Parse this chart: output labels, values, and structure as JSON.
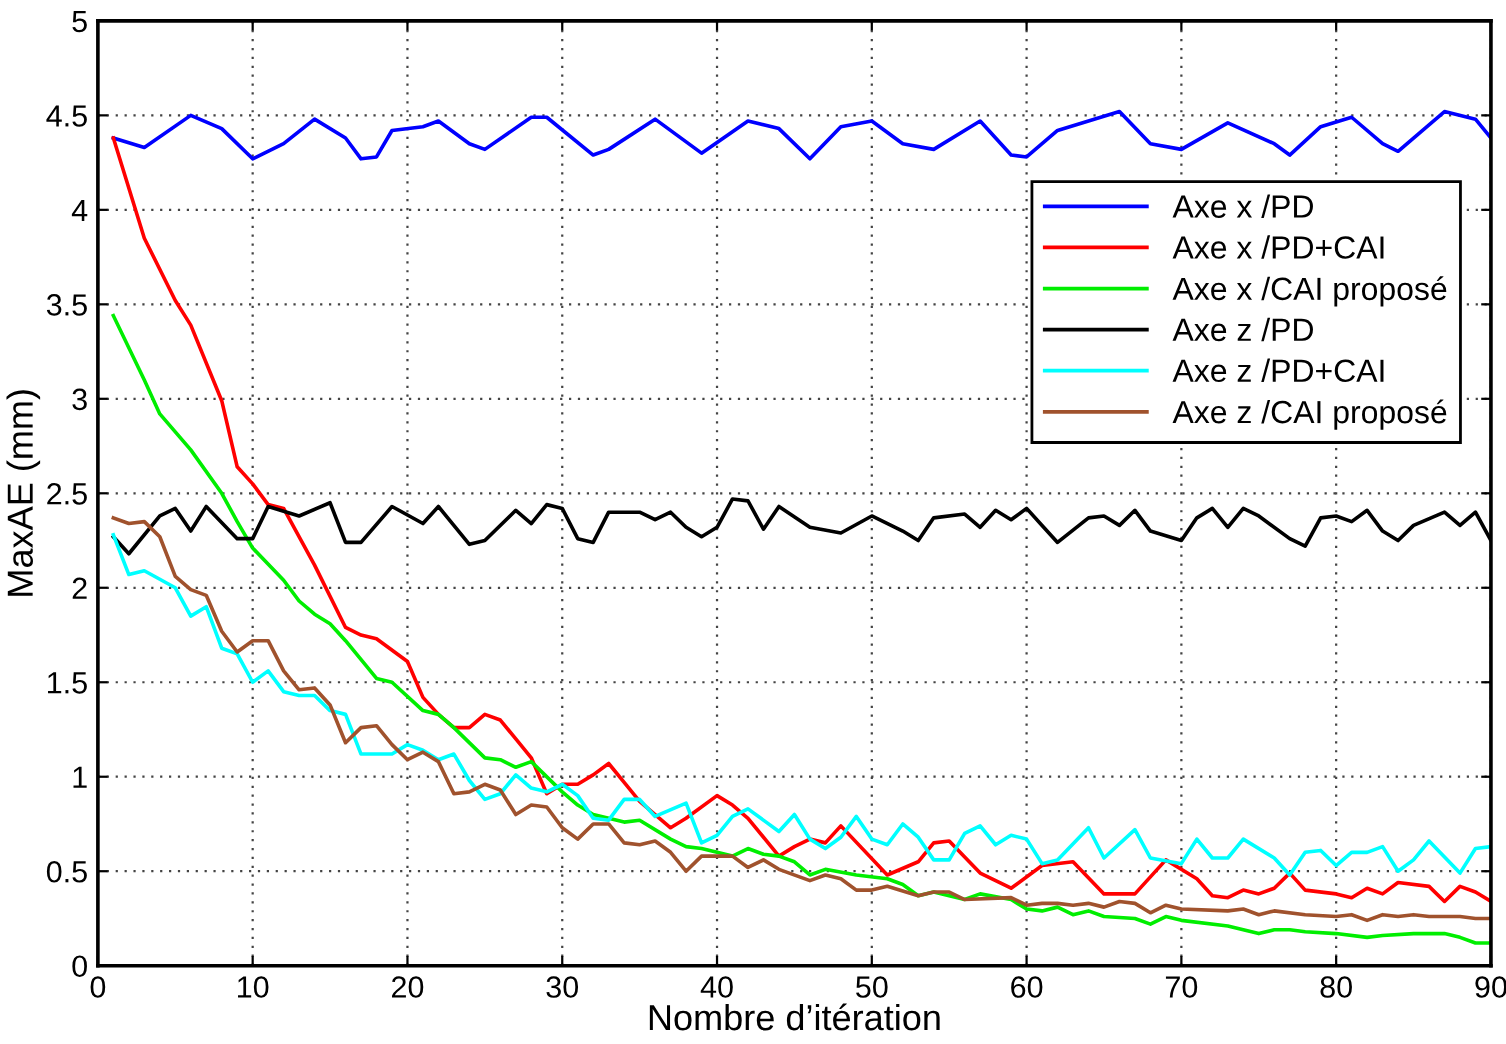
{
  "chart_data": {
    "type": "line",
    "xlabel": "Nombre d’itération",
    "ylabel": "MaxAE (mm)",
    "xlim": [
      0,
      90
    ],
    "ylim": [
      0,
      5
    ],
    "xticks": [
      0,
      10,
      20,
      30,
      40,
      50,
      60,
      70,
      80,
      90
    ],
    "yticks": [
      0,
      0.5,
      1,
      1.5,
      2,
      2.5,
      3,
      3.5,
      4,
      4.5,
      5
    ],
    "grid": true,
    "legend": "right",
    "marker": "none",
    "line_style": "solid",
    "series": [
      {
        "name": "Axe x /PD",
        "color": "#0000ff",
        "x": [
          1,
          3,
          6,
          8,
          10,
          12,
          14,
          16,
          17,
          18,
          19,
          21,
          22,
          24,
          25,
          28,
          29,
          32,
          33,
          36,
          39,
          42,
          44,
          46,
          48,
          50,
          52,
          54,
          57,
          59,
          60,
          62,
          66,
          68,
          70,
          73,
          76,
          77,
          79,
          81,
          83,
          84,
          87,
          89,
          90
        ],
        "values": [
          4.38,
          4.33,
          4.5,
          4.43,
          4.27,
          4.35,
          4.48,
          4.38,
          4.27,
          4.28,
          4.42,
          4.44,
          4.47,
          4.35,
          4.32,
          4.49,
          4.49,
          4.29,
          4.32,
          4.48,
          4.3,
          4.47,
          4.43,
          4.27,
          4.44,
          4.47,
          4.35,
          4.32,
          4.47,
          4.29,
          4.28,
          4.42,
          4.52,
          4.35,
          4.32,
          4.46,
          4.35,
          4.29,
          4.44,
          4.49,
          4.35,
          4.31,
          4.52,
          4.48,
          4.38
        ]
      },
      {
        "name": "Axe x /PD+CAI",
        "color": "#ff0000",
        "x": [
          1,
          3,
          5,
          6,
          8,
          9,
          10,
          11,
          12,
          14,
          16,
          17,
          18,
          20,
          21,
          22,
          23,
          24,
          25,
          26,
          27,
          28,
          29,
          30,
          31,
          32,
          33,
          34,
          35,
          36,
          37,
          38,
          40,
          41,
          42,
          44,
          45,
          46,
          47,
          48,
          51,
          53,
          54,
          55,
          57,
          59,
          61,
          63,
          65,
          67,
          69,
          71,
          72,
          73,
          74,
          75,
          76,
          77,
          78,
          80,
          81,
          82,
          83,
          84,
          86,
          87,
          88,
          89,
          90
        ],
        "values": [
          4.38,
          3.85,
          3.52,
          3.39,
          2.99,
          2.64,
          2.55,
          2.44,
          2.42,
          2.12,
          1.79,
          1.75,
          1.73,
          1.61,
          1.42,
          1.33,
          1.26,
          1.26,
          1.33,
          1.3,
          1.2,
          1.1,
          0.91,
          0.96,
          0.96,
          1.01,
          1.07,
          0.97,
          0.87,
          0.8,
          0.73,
          0.78,
          0.9,
          0.85,
          0.78,
          0.58,
          0.63,
          0.67,
          0.65,
          0.74,
          0.48,
          0.55,
          0.65,
          0.66,
          0.49,
          0.41,
          0.53,
          0.55,
          0.38,
          0.38,
          0.56,
          0.46,
          0.37,
          0.36,
          0.4,
          0.38,
          0.41,
          0.49,
          0.4,
          0.38,
          0.36,
          0.41,
          0.38,
          0.44,
          0.42,
          0.34,
          0.42,
          0.39,
          0.34
        ]
      },
      {
        "name": "Axe x /CAI proposé",
        "color": "#00ee00",
        "x": [
          1,
          3,
          4,
          6,
          8,
          9,
          10,
          12,
          13,
          14,
          15,
          16,
          18,
          19,
          21,
          22,
          23,
          25,
          26,
          27,
          28,
          30,
          31,
          32,
          34,
          35,
          37,
          38,
          39,
          41,
          42,
          43,
          44,
          45,
          46,
          47,
          49,
          51,
          52,
          53,
          54,
          56,
          57,
          59,
          60,
          61,
          62,
          63,
          64,
          65,
          67,
          68,
          69,
          70,
          73,
          75,
          76,
          77,
          78,
          80,
          82,
          83,
          85,
          87,
          88,
          89,
          90
        ],
        "values": [
          3.44,
          3.1,
          2.92,
          2.73,
          2.5,
          2.35,
          2.21,
          2.04,
          1.93,
          1.86,
          1.81,
          1.72,
          1.52,
          1.5,
          1.35,
          1.33,
          1.26,
          1.1,
          1.09,
          1.05,
          1.08,
          0.92,
          0.85,
          0.8,
          0.76,
          0.77,
          0.67,
          0.63,
          0.62,
          0.58,
          0.62,
          0.59,
          0.58,
          0.55,
          0.48,
          0.51,
          0.48,
          0.46,
          0.43,
          0.37,
          0.39,
          0.35,
          0.38,
          0.35,
          0.3,
          0.29,
          0.31,
          0.27,
          0.29,
          0.26,
          0.25,
          0.22,
          0.26,
          0.24,
          0.21,
          0.17,
          0.19,
          0.19,
          0.18,
          0.17,
          0.15,
          0.16,
          0.17,
          0.17,
          0.15,
          0.12,
          0.12
        ]
      },
      {
        "name": "Axe z /PD",
        "color": "#000000",
        "x": [
          1,
          2,
          4,
          5,
          6,
          7,
          9,
          10,
          11,
          13,
          15,
          16,
          17,
          19,
          21,
          22,
          24,
          25,
          27,
          28,
          29,
          30,
          31,
          32,
          33,
          35,
          36,
          37,
          38,
          39,
          40,
          41,
          42,
          43,
          44,
          46,
          48,
          50,
          52,
          53,
          54,
          56,
          57,
          58,
          59,
          60,
          61,
          62,
          64,
          65,
          66,
          67,
          68,
          70,
          71,
          72,
          73,
          74,
          75,
          77,
          78,
          79,
          80,
          81,
          82,
          83,
          84,
          85,
          87,
          88,
          89,
          90
        ],
        "values": [
          2.27,
          2.18,
          2.38,
          2.42,
          2.3,
          2.43,
          2.26,
          2.26,
          2.43,
          2.38,
          2.45,
          2.24,
          2.24,
          2.43,
          2.34,
          2.43,
          2.23,
          2.25,
          2.41,
          2.34,
          2.44,
          2.42,
          2.26,
          2.24,
          2.4,
          2.4,
          2.36,
          2.4,
          2.32,
          2.27,
          2.32,
          2.47,
          2.46,
          2.31,
          2.43,
          2.32,
          2.29,
          2.38,
          2.3,
          2.25,
          2.37,
          2.39,
          2.32,
          2.41,
          2.36,
          2.42,
          2.33,
          2.24,
          2.37,
          2.38,
          2.33,
          2.41,
          2.3,
          2.25,
          2.37,
          2.42,
          2.32,
          2.42,
          2.38,
          2.26,
          2.22,
          2.37,
          2.38,
          2.35,
          2.41,
          2.3,
          2.25,
          2.33,
          2.4,
          2.33,
          2.4,
          2.25
        ]
      },
      {
        "name": "Axe z /PD+CAI",
        "color": "#00ffff",
        "x": [
          1,
          2,
          3,
          5,
          6,
          7,
          8,
          9,
          10,
          11,
          12,
          13,
          14,
          15,
          16,
          17,
          19,
          20,
          21,
          22,
          23,
          24,
          25,
          26,
          27,
          28,
          29,
          30,
          31,
          32,
          33,
          34,
          35,
          36,
          38,
          39,
          40,
          41,
          42,
          44,
          45,
          46,
          47,
          48,
          49,
          50,
          51,
          52,
          53,
          54,
          55,
          56,
          57,
          58,
          59,
          60,
          61,
          62,
          64,
          65,
          67,
          68,
          70,
          71,
          72,
          73,
          74,
          76,
          77,
          78,
          79,
          80,
          81,
          82,
          83,
          84,
          85,
          86,
          88,
          89,
          90
        ],
        "values": [
          2.28,
          2.07,
          2.09,
          2.0,
          1.85,
          1.9,
          1.68,
          1.65,
          1.5,
          1.56,
          1.45,
          1.43,
          1.43,
          1.35,
          1.33,
          1.12,
          1.12,
          1.17,
          1.14,
          1.09,
          1.12,
          0.98,
          0.88,
          0.91,
          1.01,
          0.94,
          0.92,
          0.96,
          0.9,
          0.78,
          0.77,
          0.88,
          0.88,
          0.79,
          0.86,
          0.65,
          0.69,
          0.79,
          0.83,
          0.71,
          0.8,
          0.67,
          0.62,
          0.68,
          0.79,
          0.67,
          0.64,
          0.75,
          0.68,
          0.56,
          0.56,
          0.7,
          0.74,
          0.64,
          0.69,
          0.67,
          0.54,
          0.56,
          0.73,
          0.57,
          0.72,
          0.57,
          0.54,
          0.67,
          0.57,
          0.57,
          0.67,
          0.57,
          0.48,
          0.6,
          0.61,
          0.53,
          0.6,
          0.6,
          0.63,
          0.5,
          0.56,
          0.66,
          0.49,
          0.62,
          0.63
        ]
      },
      {
        "name": "Axe z /CAI proposé",
        "color": "#a0522d",
        "x": [
          1,
          2,
          3,
          4,
          5,
          6,
          7,
          8,
          9,
          10,
          11,
          12,
          13,
          14,
          15,
          16,
          17,
          18,
          19,
          20,
          21,
          22,
          23,
          24,
          25,
          26,
          27,
          28,
          29,
          30,
          31,
          32,
          33,
          34,
          35,
          36,
          37,
          38,
          39,
          40,
          41,
          42,
          43,
          44,
          46,
          47,
          48,
          49,
          50,
          51,
          53,
          54,
          55,
          56,
          59,
          60,
          61,
          62,
          63,
          64,
          65,
          66,
          67,
          68,
          69,
          70,
          73,
          74,
          75,
          76,
          78,
          80,
          81,
          82,
          83,
          84,
          85,
          86,
          88,
          89,
          90
        ],
        "values": [
          2.37,
          2.34,
          2.35,
          2.27,
          2.06,
          1.99,
          1.96,
          1.77,
          1.66,
          1.72,
          1.72,
          1.56,
          1.46,
          1.47,
          1.38,
          1.18,
          1.26,
          1.27,
          1.17,
          1.09,
          1.13,
          1.08,
          0.91,
          0.92,
          0.96,
          0.93,
          0.8,
          0.85,
          0.84,
          0.73,
          0.67,
          0.75,
          0.75,
          0.65,
          0.64,
          0.66,
          0.6,
          0.5,
          0.58,
          0.58,
          0.58,
          0.52,
          0.56,
          0.51,
          0.45,
          0.48,
          0.46,
          0.4,
          0.4,
          0.42,
          0.37,
          0.39,
          0.39,
          0.35,
          0.36,
          0.32,
          0.33,
          0.33,
          0.32,
          0.33,
          0.31,
          0.34,
          0.33,
          0.28,
          0.32,
          0.3,
          0.29,
          0.3,
          0.27,
          0.29,
          0.27,
          0.26,
          0.27,
          0.24,
          0.27,
          0.26,
          0.27,
          0.26,
          0.26,
          0.25,
          0.25
        ]
      }
    ]
  }
}
